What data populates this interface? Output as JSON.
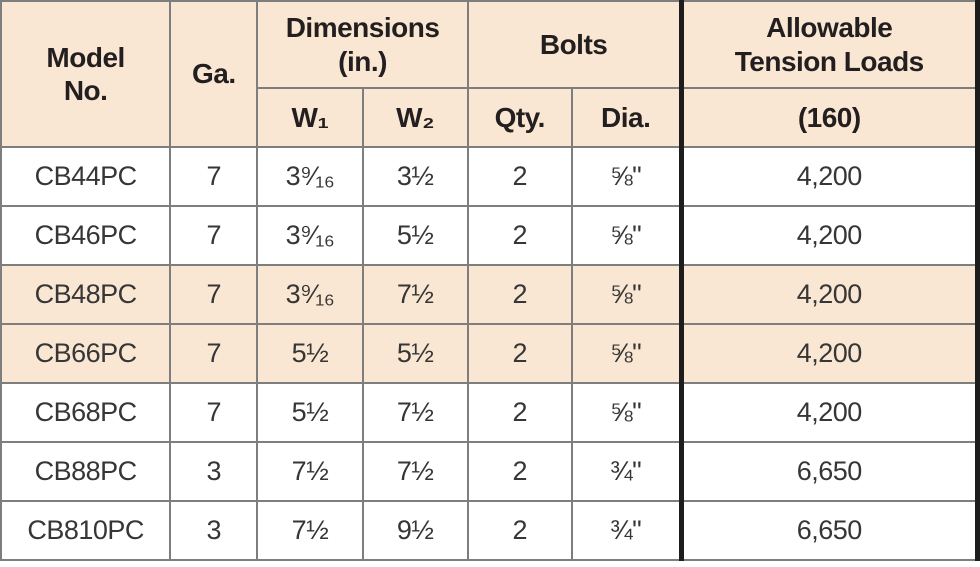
{
  "table": {
    "title_semantic": "Allowable tension loads specification table",
    "header": {
      "model": "Model\nNo.",
      "ga": "Ga.",
      "dimensions": "Dimensions\n(in.)",
      "w1": "W₁",
      "w2": "W₂",
      "bolts": "Bolts",
      "qty": "Qty.",
      "dia": "Dia.",
      "allowable": "Allowable\nTension Loads",
      "load_group": "(160)"
    },
    "rows": [
      {
        "model": "CB44PC",
        "ga": "7",
        "w1": "3⁹⁄₁₆",
        "w2": "3½",
        "qty": "2",
        "dia": "⅝\"",
        "load": "4,200",
        "shaded": false
      },
      {
        "model": "CB46PC",
        "ga": "7",
        "w1": "3⁹⁄₁₆",
        "w2": "5½",
        "qty": "2",
        "dia": "⅝\"",
        "load": "4,200",
        "shaded": false
      },
      {
        "model": "CB48PC",
        "ga": "7",
        "w1": "3⁹⁄₁₆",
        "w2": "7½",
        "qty": "2",
        "dia": "⅝\"",
        "load": "4,200",
        "shaded": true
      },
      {
        "model": "CB66PC",
        "ga": "7",
        "w1": "5½",
        "w2": "5½",
        "qty": "2",
        "dia": "⅝\"",
        "load": "4,200",
        "shaded": true
      },
      {
        "model": "CB68PC",
        "ga": "7",
        "w1": "5½",
        "w2": "7½",
        "qty": "2",
        "dia": "⅝\"",
        "load": "4,200",
        "shaded": false
      },
      {
        "model": "CB88PC",
        "ga": "3",
        "w1": "7½",
        "w2": "7½",
        "qty": "2",
        "dia": "¾\"",
        "load": "6,650",
        "shaded": false
      },
      {
        "model": "CB810PC",
        "ga": "3",
        "w1": "7½",
        "w2": "9½",
        "qty": "2",
        "dia": "¾\"",
        "load": "6,650",
        "shaded": false
      }
    ],
    "colors": {
      "header_bg": "#FAE7D3",
      "shaded_row_bg": "#FAE7D3",
      "grid_line": "#7E7E7E",
      "heavy_rule": "#1D1D1D",
      "header_text": "#231F20",
      "body_text": "#363636"
    }
  }
}
